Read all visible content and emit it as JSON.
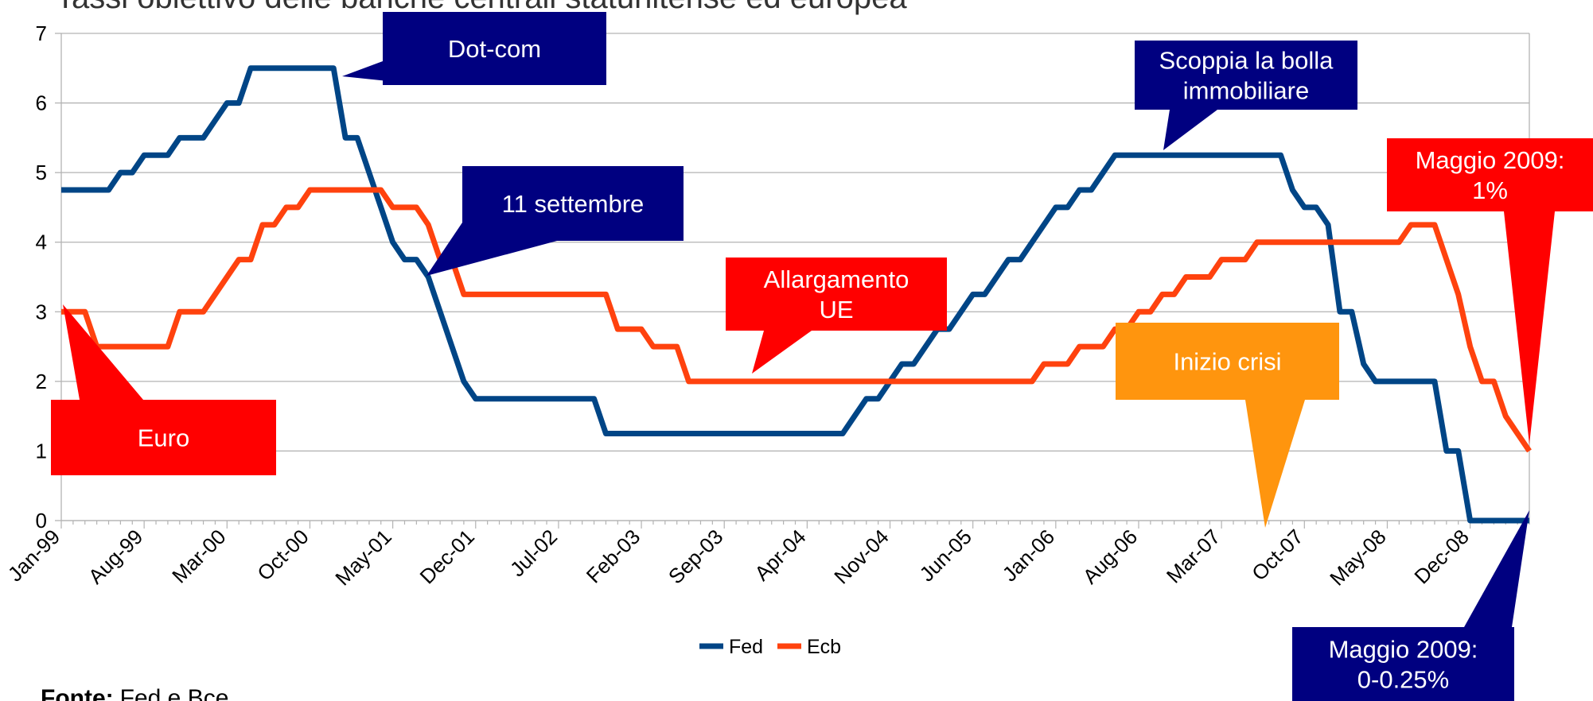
{
  "chart_data": {
    "type": "line",
    "title": "Tassi obiettivo delle banche centrali statunitense ed europea",
    "categories": [
      "Jan-99",
      null,
      null,
      null,
      null,
      null,
      null,
      "Aug-99",
      null,
      null,
      null,
      null,
      null,
      null,
      "Mar-00",
      null,
      null,
      null,
      null,
      null,
      null,
      "Oct-00",
      null,
      null,
      null,
      null,
      null,
      null,
      "May-01",
      null,
      null,
      null,
      null,
      null,
      null,
      "Dec-01",
      null,
      null,
      null,
      null,
      null,
      null,
      "Jul-02",
      null,
      null,
      null,
      null,
      null,
      null,
      "Feb-03",
      null,
      null,
      null,
      null,
      null,
      null,
      "Sep-03",
      null,
      null,
      null,
      null,
      null,
      null,
      "Apr-04",
      null,
      null,
      null,
      null,
      null,
      null,
      "Nov-04",
      null,
      null,
      null,
      null,
      null,
      null,
      "Jun-05",
      null,
      null,
      null,
      null,
      null,
      null,
      "Jan-06",
      null,
      null,
      null,
      null,
      null,
      null,
      "Aug-06",
      null,
      null,
      null,
      null,
      null,
      null,
      "Mar-07",
      null,
      null,
      null,
      null,
      null,
      null,
      "Oct-07",
      null,
      null,
      null,
      null,
      null,
      null,
      "May-08",
      null,
      null,
      null,
      null,
      null,
      null,
      "Dec-08",
      null,
      null,
      null,
      null,
      null
    ],
    "series": [
      {
        "name": "Fed",
        "color": "#004586",
        "values": [
          4.75,
          4.75,
          4.75,
          4.75,
          4.75,
          5,
          5,
          5.25,
          5.25,
          5.25,
          5.5,
          5.5,
          5.5,
          5.75,
          6,
          6,
          6.5,
          6.5,
          6.5,
          6.5,
          6.5,
          6.5,
          6.5,
          6.5,
          5.5,
          5.5,
          5,
          4.5,
          4,
          3.75,
          3.75,
          3.5,
          3,
          2.5,
          2,
          1.75,
          1.75,
          1.75,
          1.75,
          1.75,
          1.75,
          1.75,
          1.75,
          1.75,
          1.75,
          1.75,
          1.25,
          1.25,
          1.25,
          1.25,
          1.25,
          1.25,
          1.25,
          1.25,
          1.25,
          1.25,
          1.25,
          1.25,
          1.25,
          1.25,
          1.25,
          1.25,
          1.25,
          1.25,
          1.25,
          1.25,
          1.25,
          1.5,
          1.75,
          1.75,
          2,
          2.25,
          2.25,
          2.5,
          2.75,
          2.75,
          3,
          3.25,
          3.25,
          3.5,
          3.75,
          3.75,
          4,
          4.25,
          4.5,
          4.5,
          4.75,
          4.75,
          5,
          5.25,
          5.25,
          5.25,
          5.25,
          5.25,
          5.25,
          5.25,
          5.25,
          5.25,
          5.25,
          5.25,
          5.25,
          5.25,
          5.25,
          5.25,
          4.75,
          4.5,
          4.5,
          4.25,
          3,
          3,
          2.25,
          2,
          2,
          2,
          2,
          2,
          2,
          1,
          1,
          0,
          0,
          0,
          0,
          0,
          0
        ]
      },
      {
        "name": "Ecb",
        "color": "#ff420e",
        "values": [
          3,
          3,
          3,
          2.5,
          2.5,
          2.5,
          2.5,
          2.5,
          2.5,
          2.5,
          3,
          3,
          3,
          3.25,
          3.5,
          3.75,
          3.75,
          4.25,
          4.25,
          4.5,
          4.5,
          4.75,
          4.75,
          4.75,
          4.75,
          4.75,
          4.75,
          4.75,
          4.5,
          4.5,
          4.5,
          4.25,
          3.75,
          3.75,
          3.25,
          3.25,
          3.25,
          3.25,
          3.25,
          3.25,
          3.25,
          3.25,
          3.25,
          3.25,
          3.25,
          3.25,
          3.25,
          2.75,
          2.75,
          2.75,
          2.5,
          2.5,
          2.5,
          2,
          2,
          2,
          2,
          2,
          2,
          2,
          2,
          2,
          2,
          2,
          2,
          2,
          2,
          2,
          2,
          2,
          2,
          2,
          2,
          2,
          2,
          2,
          2,
          2,
          2,
          2,
          2,
          2,
          2,
          2.25,
          2.25,
          2.25,
          2.5,
          2.5,
          2.5,
          2.75,
          2.75,
          3,
          3,
          3.25,
          3.25,
          3.5,
          3.5,
          3.5,
          3.75,
          3.75,
          3.75,
          4,
          4,
          4,
          4,
          4,
          4,
          4,
          4,
          4,
          4,
          4,
          4,
          4,
          4.25,
          4.25,
          4.25,
          3.75,
          3.25,
          2.5,
          2,
          2,
          1.5,
          1.25,
          1
        ]
      }
    ],
    "ylim": [
      0,
      7
    ],
    "yticks": [
      0,
      1,
      2,
      3,
      4,
      5,
      6,
      7
    ],
    "grid": true,
    "annotations": [
      {
        "text": [
          "Dot-com"
        ],
        "color": "#000080"
      },
      {
        "text": [
          "Scoppia la bolla",
          "immobiliare"
        ],
        "color": "#000080"
      },
      {
        "text": [
          "Maggio 2009:",
          "1%"
        ],
        "color": "#ff0000"
      },
      {
        "text": [
          "11 settembre"
        ],
        "color": "#000080"
      },
      {
        "text": [
          "Allargamento",
          "UE"
        ],
        "color": "#ff0000"
      },
      {
        "text": [
          "Inizio crisi"
        ],
        "color": "#ff950e"
      },
      {
        "text": [
          "Euro"
        ],
        "color": "#ff0000"
      },
      {
        "text": [
          "Maggio 2009:",
          "0-0.25%"
        ],
        "color": "#000080"
      }
    ],
    "source": {
      "label": "Fonte:",
      "text": "Fed e Bce"
    }
  }
}
